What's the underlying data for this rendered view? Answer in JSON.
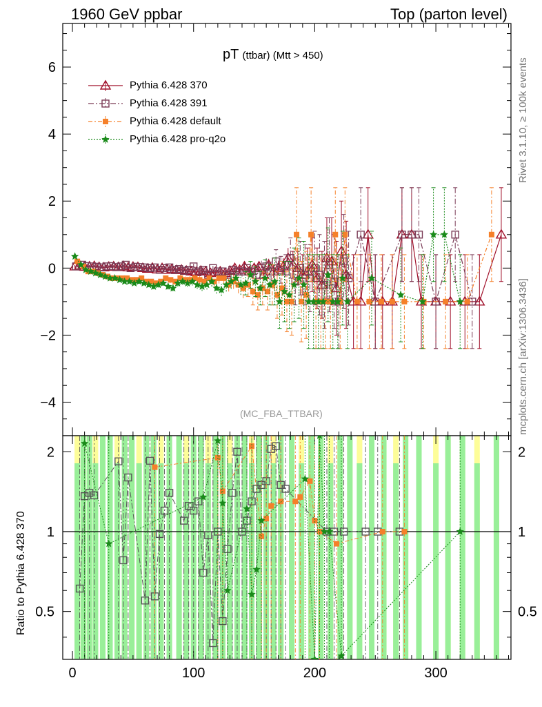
{
  "header": {
    "left": "1960 GeV ppbar",
    "right": "Top (parton level)"
  },
  "side_labels": {
    "rivet": "Rivet 3.1.10, ≥ 100k events",
    "mcplots": "mcplots.cern.ch [arXiv:1306.3436]"
  },
  "plot_title": {
    "main": "pT",
    "sub": "(ttbar) (Mtt > 450)"
  },
  "watermark": "(MC_FBA_TTBAR)",
  "ratio_ylabel": "Ratio to Pythia 6.428 370",
  "colors": {
    "s370": "#a0102a",
    "s391": "#7a3a55",
    "default": "#f5802a",
    "proq2o": "#1a8a1a",
    "band_green": "#99ef99",
    "band_yellow": "#fdfd99"
  },
  "chart_data": [
    {
      "type": "line",
      "panel": "main",
      "xlim": [
        -8,
        362
      ],
      "ylim": [
        -5,
        7.3
      ],
      "yticks": [
        -4,
        -2,
        0,
        2,
        4,
        6
      ],
      "ytick_labels": [
        "−4",
        "−2",
        "0",
        "2",
        "4",
        "6"
      ],
      "grid": false,
      "legend_position": "top-left",
      "series": [
        {
          "name": "Pythia 6.428 370",
          "marker": "triangle-open",
          "x": [
            2,
            6,
            10,
            14,
            18,
            22,
            26,
            30,
            34,
            38,
            42,
            46,
            50,
            54,
            58,
            62,
            66,
            70,
            74,
            78,
            82,
            86,
            90,
            94,
            98,
            102,
            106,
            110,
            114,
            118,
            122,
            126,
            130,
            134,
            138,
            142,
            146,
            150,
            154,
            158,
            162,
            166,
            170,
            174,
            178,
            182,
            186,
            190,
            194,
            198,
            202,
            206,
            210,
            214,
            218,
            222,
            226,
            232,
            238,
            244,
            250,
            256,
            264,
            272,
            280,
            288,
            300,
            312,
            324,
            336,
            354
          ],
          "y": [
            0.05,
            0.08,
            0.04,
            0.05,
            0.06,
            0.03,
            0.02,
            0.04,
            0.05,
            0.03,
            0.06,
            0.02,
            0.04,
            0.03,
            0.0,
            -0.02,
            0.01,
            -0.04,
            0.0,
            -0.05,
            -0.03,
            -0.06,
            -0.05,
            -0.08,
            -0.1,
            -0.12,
            -0.08,
            -0.1,
            -0.15,
            -0.12,
            -0.1,
            -0.15,
            -0.08,
            0.0,
            -0.05,
            0.05,
            -0.1,
            0.0,
            0.05,
            -0.2,
            0.1,
            -0.1,
            0.0,
            0.05,
            0.3,
            0.1,
            0.0,
            -0.2,
            -0.1,
            0.1,
            -0.3,
            -0.5,
            0.3,
            0.2,
            -0.6,
            0.5,
            -0.2,
            -1.0,
            -1.0,
            1.0,
            -1.0,
            -1.0,
            -1.0,
            1.0,
            1.0,
            -1.0,
            -1.0,
            -1.0,
            -1.0,
            -1.0,
            1.0
          ],
          "yerr": [
            0.04,
            0.04,
            0.04,
            0.04,
            0.04,
            0.04,
            0.04,
            0.04,
            0.04,
            0.05,
            0.05,
            0.05,
            0.05,
            0.05,
            0.05,
            0.05,
            0.05,
            0.06,
            0.06,
            0.06,
            0.06,
            0.06,
            0.06,
            0.07,
            0.07,
            0.07,
            0.07,
            0.08,
            0.08,
            0.08,
            0.08,
            0.09,
            0.09,
            0.1,
            0.1,
            0.12,
            0.12,
            0.14,
            0.14,
            0.16,
            0.18,
            0.2,
            0.22,
            0.25,
            0.3,
            0.4,
            0.5,
            0.6,
            0.7,
            0.8,
            0.9,
            1.0,
            1.2,
            1.3,
            1.4,
            1.5,
            1.6,
            1.4,
            1.4,
            1.4,
            1.4,
            1.4,
            1.4,
            1.4,
            1.4,
            1.4,
            1.4,
            1.4,
            1.4,
            1.4,
            1.4
          ]
        },
        {
          "name": "Pythia 6.428 391",
          "marker": "square-open",
          "x": [
            3,
            8,
            12,
            16,
            20,
            24,
            28,
            32,
            36,
            40,
            44,
            48,
            52,
            56,
            60,
            64,
            68,
            72,
            76,
            80,
            84,
            88,
            92,
            96,
            100,
            104,
            108,
            112,
            116,
            120,
            124,
            128,
            132,
            136,
            140,
            144,
            148,
            152,
            156,
            160,
            164,
            168,
            172,
            176,
            180,
            184,
            188,
            192,
            196,
            200,
            204,
            208,
            212,
            216,
            220,
            224,
            228,
            238,
            250,
            272,
            280,
            286,
            300,
            316,
            330
          ],
          "y": [
            0.05,
            0.1,
            0.06,
            0.05,
            0.04,
            0.02,
            0.05,
            0.06,
            0.03,
            0.05,
            0.1,
            0.0,
            0.04,
            0.03,
            0.02,
            0.0,
            0.02,
            -0.05,
            0.0,
            0.02,
            -0.05,
            -0.03,
            -0.08,
            -0.05,
            0.05,
            -0.1,
            -0.05,
            -0.2,
            0.0,
            -0.1,
            -0.1,
            -0.2,
            -0.05,
            -0.1,
            -0.1,
            0.0,
            -0.1,
            -0.2,
            0.0,
            0.05,
            -0.1,
            0.2,
            -0.05,
            -0.1,
            0.3,
            -0.4,
            0.0,
            -0.2,
            -0.3,
            0.0,
            -0.2,
            -0.5,
            0.1,
            -0.4,
            -1.0,
            0.2,
            -0.3,
            1.0,
            -1.0,
            1.0,
            1.0,
            1.0,
            -1.0,
            1.0,
            -1.0
          ],
          "yerr": [
            0.04,
            0.04,
            0.04,
            0.04,
            0.04,
            0.04,
            0.05,
            0.05,
            0.05,
            0.05,
            0.05,
            0.05,
            0.05,
            0.06,
            0.06,
            0.06,
            0.06,
            0.06,
            0.07,
            0.07,
            0.07,
            0.07,
            0.08,
            0.08,
            0.08,
            0.09,
            0.09,
            0.1,
            0.1,
            0.11,
            0.12,
            0.12,
            0.13,
            0.14,
            0.15,
            0.16,
            0.18,
            0.2,
            0.22,
            0.25,
            0.3,
            0.35,
            0.4,
            0.5,
            0.6,
            0.7,
            0.8,
            0.9,
            1.0,
            1.1,
            1.2,
            1.3,
            1.4,
            1.4,
            1.4,
            1.4,
            1.4,
            1.4,
            1.4,
            1.4,
            1.4,
            1.4,
            1.4,
            1.4,
            1.4
          ]
        },
        {
          "name": "Pythia 6.428 default",
          "marker": "square-filled",
          "x": [
            4,
            9,
            13,
            17,
            21,
            25,
            29,
            33,
            37,
            41,
            45,
            49,
            53,
            57,
            61,
            65,
            69,
            73,
            77,
            81,
            85,
            89,
            93,
            97,
            101,
            105,
            109,
            113,
            117,
            121,
            125,
            129,
            133,
            137,
            141,
            145,
            149,
            153,
            157,
            161,
            165,
            169,
            173,
            177,
            181,
            185,
            189,
            193,
            197,
            201,
            205,
            209,
            213,
            217,
            221,
            225,
            235,
            245,
            255,
            264,
            274,
            290,
            308,
            326,
            346
          ],
          "y": [
            0.2,
            0.05,
            -0.1,
            -0.1,
            -0.15,
            -0.2,
            -0.25,
            -0.3,
            -0.3,
            -0.3,
            -0.3,
            -0.35,
            -0.35,
            -0.3,
            -0.4,
            -0.4,
            -0.45,
            -0.4,
            -0.3,
            -0.35,
            -0.4,
            -0.3,
            -0.35,
            -0.35,
            -0.3,
            -0.35,
            -0.4,
            -0.3,
            -0.4,
            -0.3,
            -0.3,
            -0.5,
            -0.4,
            -0.5,
            -0.6,
            -0.5,
            -0.7,
            -0.8,
            -0.6,
            -0.7,
            -0.5,
            -0.8,
            -0.6,
            -1.0,
            -1.0,
            1.0,
            -1.0,
            -0.8,
            1.0,
            -1.0,
            -1.0,
            -1.0,
            -1.0,
            1.0,
            -1.0,
            1.0,
            -1.0,
            -1.0,
            -1.0,
            -1.0,
            -1.0,
            -1.0,
            -1.0,
            -1.0,
            1.0
          ],
          "yerr": [
            0.04,
            0.04,
            0.04,
            0.04,
            0.05,
            0.05,
            0.05,
            0.05,
            0.05,
            0.06,
            0.06,
            0.06,
            0.06,
            0.07,
            0.07,
            0.07,
            0.08,
            0.08,
            0.08,
            0.09,
            0.09,
            0.1,
            0.1,
            0.11,
            0.12,
            0.12,
            0.13,
            0.14,
            0.15,
            0.16,
            0.18,
            0.2,
            0.22,
            0.25,
            0.3,
            0.35,
            0.4,
            0.45,
            0.5,
            0.55,
            0.6,
            0.7,
            0.8,
            0.9,
            1.0,
            1.4,
            1.2,
            1.3,
            1.4,
            1.4,
            1.4,
            1.4,
            1.4,
            1.4,
            1.4,
            1.4,
            1.4,
            1.4,
            1.4,
            1.4,
            1.4,
            1.4,
            1.4,
            1.4,
            1.4
          ]
        },
        {
          "name": "Pythia 6.428 pro-q2o",
          "marker": "star",
          "x": [
            2,
            7,
            11,
            15,
            19,
            23,
            27,
            31,
            35,
            39,
            43,
            47,
            51,
            55,
            59,
            63,
            67,
            71,
            75,
            79,
            83,
            87,
            91,
            95,
            99,
            103,
            107,
            111,
            115,
            119,
            123,
            127,
            131,
            135,
            139,
            143,
            147,
            151,
            155,
            159,
            163,
            167,
            171,
            175,
            179,
            183,
            187,
            191,
            195,
            199,
            203,
            207,
            211,
            215,
            219,
            223,
            227,
            247,
            271,
            289,
            298,
            307,
            320
          ],
          "y": [
            0.35,
            0.1,
            -0.05,
            -0.1,
            -0.15,
            -0.2,
            -0.25,
            -0.3,
            -0.3,
            -0.35,
            -0.4,
            -0.4,
            -0.45,
            -0.4,
            -0.45,
            -0.5,
            -0.55,
            -0.5,
            -0.45,
            -0.55,
            -0.6,
            -0.45,
            -0.4,
            -0.45,
            -0.4,
            -0.5,
            -0.55,
            -0.5,
            -0.4,
            -0.6,
            -0.65,
            -0.5,
            -0.4,
            -0.3,
            -0.5,
            -0.45,
            -0.2,
            -0.4,
            -0.6,
            -0.3,
            -0.5,
            -0.4,
            -1.0,
            -0.7,
            -0.8,
            -0.5,
            -0.3,
            -0.5,
            -1.0,
            -1.0,
            -1.0,
            -1.0,
            -0.2,
            -1.0,
            -1.0,
            -0.3,
            -1.0,
            -0.3,
            -0.8,
            -1.0,
            1.0,
            1.0,
            -1.0
          ],
          "yerr": [
            0.04,
            0.04,
            0.04,
            0.04,
            0.05,
            0.05,
            0.05,
            0.05,
            0.05,
            0.06,
            0.06,
            0.06,
            0.06,
            0.07,
            0.07,
            0.07,
            0.08,
            0.08,
            0.08,
            0.09,
            0.09,
            0.1,
            0.1,
            0.11,
            0.12,
            0.12,
            0.13,
            0.14,
            0.15,
            0.16,
            0.18,
            0.2,
            0.22,
            0.25,
            0.3,
            0.35,
            0.4,
            0.45,
            0.5,
            0.55,
            0.6,
            0.7,
            0.8,
            0.9,
            1.0,
            1.1,
            1.2,
            1.3,
            1.4,
            1.4,
            1.4,
            1.4,
            1.4,
            1.4,
            1.4,
            1.4,
            1.4,
            1.4,
            1.4,
            1.4,
            1.4,
            1.4,
            1.4
          ]
        }
      ]
    },
    {
      "type": "scatter",
      "panel": "ratio",
      "xlim": [
        -8,
        362
      ],
      "ylim": [
        0.33,
        2.3
      ],
      "yticks": [
        0.5,
        1,
        2
      ],
      "ytick_labels": [
        "0.5",
        "1",
        "2"
      ],
      "xticks": [
        0,
        100,
        200,
        300
      ],
      "xtick_labels": [
        "0",
        "100",
        "200",
        "300"
      ],
      "reference_line": 1.0,
      "bands": {
        "description": "MC uncertainty bands of the reference (green 1σ, yellow 2σ)",
        "x_centers": [
          4,
          9,
          14,
          19,
          25,
          31,
          37,
          43,
          49,
          55,
          61,
          67,
          73,
          80,
          88,
          94,
          100,
          106,
          112,
          118,
          124,
          130,
          136,
          142,
          148,
          154,
          160,
          166,
          172,
          181,
          189,
          197,
          205,
          213,
          221,
          229,
          237,
          247,
          257,
          267,
          275,
          286,
          300,
          310,
          322,
          334,
          350
        ]
      },
      "series": [
        {
          "name": "Pythia 6.428 391",
          "marker": "square-open",
          "x": [
            6,
            10,
            14,
            18,
            38,
            42,
            46,
            60,
            64,
            68,
            72,
            76,
            80,
            92,
            96,
            100,
            104,
            108,
            112,
            116,
            120,
            124,
            128,
            132,
            136,
            140,
            144,
            148,
            152,
            156,
            160,
            164,
            168,
            172,
            176,
            210,
            216,
            224,
            242,
            252,
            270
          ],
          "y": [
            0.61,
            1.36,
            1.4,
            1.37,
            1.84,
            0.78,
            1.6,
            0.55,
            1.85,
            0.57,
            0.98,
            1.2,
            1.4,
            1.1,
            1.25,
            1.2,
            1.3,
            0.7,
            0.97,
            0.38,
            1.0,
            0.46,
            0.86,
            1.4,
            2.0,
            1.0,
            1.1,
            1.3,
            1.45,
            1.5,
            1.55,
            2.05,
            2.1,
            1.5,
            1.45,
            1.0,
            1.0,
            1.0,
            1.0,
            1.0,
            1.0
          ]
        },
        {
          "name": "Pythia 6.428 default",
          "marker": "square-filled",
          "x": [
            68,
            120,
            124,
            148,
            156,
            160,
            164,
            172,
            184,
            188,
            196,
            200,
            204,
            218,
            256,
            274
          ],
          "y": [
            1.75,
            1.9,
            1.42,
            2.1,
            0.96,
            1.12,
            1.25,
            1.3,
            1.3,
            1.35,
            1.55,
            1.1,
            1.0,
            0.9,
            1.0,
            1.0
          ]
        },
        {
          "name": "Pythia 6.428 pro-q2o",
          "marker": "star",
          "x": [
            10,
            30,
            108,
            120,
            124,
            128,
            144,
            148,
            152,
            156,
            192,
            200,
            204,
            208,
            212,
            222,
            320
          ],
          "y": [
            2.15,
            0.9,
            1.35,
            2.2,
            1.28,
            0.6,
            1.22,
            0.58,
            0.72,
            1.1,
            1.58,
            0.33,
            2.3,
            1.0,
            1.0,
            0.34,
            1.0
          ]
        }
      ]
    }
  ]
}
